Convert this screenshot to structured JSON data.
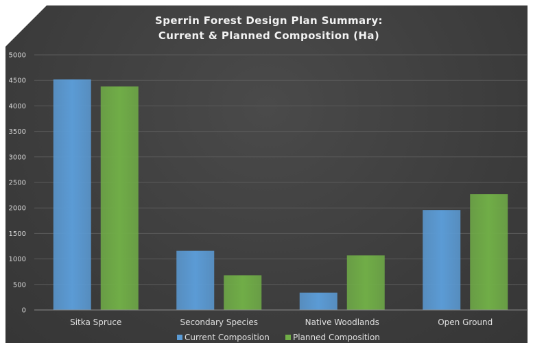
{
  "chart_data": {
    "type": "bar",
    "title_lines": [
      "Sperrin Forest Design Plan Summary:",
      "Current & Planned Composition (Ha)"
    ],
    "categories": [
      "Sitka Spruce",
      "Secondary Species",
      "Native Woodlands",
      "Open Ground"
    ],
    "series": [
      {
        "name": "Current Composition",
        "values": [
          4520,
          1160,
          340,
          1960
        ],
        "color": "#5b9bd5"
      },
      {
        "name": "Planned Composition",
        "values": [
          4380,
          680,
          1070,
          2270
        ],
        "color": "#70ad47"
      }
    ],
    "ylim": [
      0,
      5000
    ],
    "yticks": [
      "0",
      "500",
      "1000",
      "1500",
      "2000",
      "2500",
      "3000",
      "3500",
      "4000",
      "4500",
      "5000"
    ],
    "grid": true,
    "legend_position": "bottom",
    "background": "#404040"
  }
}
